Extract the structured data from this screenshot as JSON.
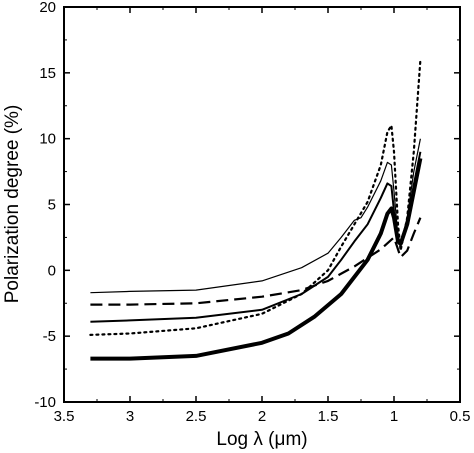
{
  "chart_data": {
    "type": "line",
    "xlabel": "Log λ (μm)",
    "ylabel": "Polarization degree (%)",
    "xlim": [
      3.5,
      0.5
    ],
    "ylim": [
      -10,
      20
    ],
    "x_axis_reversed": true,
    "x_ticks": [
      3.5,
      3,
      2.5,
      2,
      1.5,
      1,
      0.5
    ],
    "x_tick_labels": [
      "3.5",
      "3",
      "2.5",
      "2",
      "1.5",
      "1",
      "0.5"
    ],
    "y_ticks": [
      -10,
      -5,
      0,
      5,
      10,
      15,
      20
    ],
    "y_tick_labels": [
      "-10",
      "-5",
      "0",
      "5",
      "10",
      "15",
      "20"
    ],
    "grid": false,
    "legend": "none",
    "series": [
      {
        "style": "thin-solid",
        "points": [
          [
            3.3,
            -1.7
          ],
          [
            3.0,
            -1.6
          ],
          [
            2.5,
            -1.5
          ],
          [
            2.0,
            -0.8
          ],
          [
            1.7,
            0.2
          ],
          [
            1.5,
            1.3
          ],
          [
            1.4,
            2.5
          ],
          [
            1.3,
            3.8
          ],
          [
            1.25,
            4.0
          ],
          [
            1.2,
            4.8
          ],
          [
            1.1,
            6.8
          ],
          [
            1.05,
            8.2
          ],
          [
            1.02,
            8.0
          ],
          [
            1.0,
            6.0
          ],
          [
            0.97,
            2.5
          ],
          [
            0.95,
            2.0
          ],
          [
            0.9,
            4.0
          ],
          [
            0.85,
            7.5
          ],
          [
            0.8,
            10.0
          ]
        ]
      },
      {
        "style": "medium-solid",
        "points": [
          [
            3.3,
            -3.9
          ],
          [
            3.0,
            -3.8
          ],
          [
            2.5,
            -3.6
          ],
          [
            2.0,
            -3.0
          ],
          [
            1.7,
            -1.8
          ],
          [
            1.5,
            -0.5
          ],
          [
            1.4,
            0.8
          ],
          [
            1.3,
            2.2
          ],
          [
            1.2,
            3.5
          ],
          [
            1.1,
            5.5
          ],
          [
            1.05,
            6.6
          ],
          [
            1.02,
            6.4
          ],
          [
            1.0,
            4.5
          ],
          [
            0.97,
            2.5
          ],
          [
            0.95,
            2.0
          ],
          [
            0.9,
            3.5
          ],
          [
            0.85,
            6.5
          ],
          [
            0.8,
            9.0
          ]
        ]
      },
      {
        "style": "thick-solid",
        "points": [
          [
            3.3,
            -6.7
          ],
          [
            3.0,
            -6.7
          ],
          [
            2.5,
            -6.5
          ],
          [
            2.0,
            -5.5
          ],
          [
            1.8,
            -4.8
          ],
          [
            1.6,
            -3.5
          ],
          [
            1.4,
            -1.8
          ],
          [
            1.2,
            0.8
          ],
          [
            1.1,
            2.8
          ],
          [
            1.05,
            4.3
          ],
          [
            1.02,
            4.7
          ],
          [
            1.0,
            4.0
          ],
          [
            0.97,
            2.2
          ],
          [
            0.95,
            2.0
          ],
          [
            0.9,
            3.5
          ],
          [
            0.85,
            6.0
          ],
          [
            0.8,
            8.5
          ]
        ]
      },
      {
        "style": "dashed",
        "points": [
          [
            3.3,
            -2.6
          ],
          [
            3.0,
            -2.6
          ],
          [
            2.5,
            -2.5
          ],
          [
            2.0,
            -2.0
          ],
          [
            1.7,
            -1.5
          ],
          [
            1.5,
            -0.8
          ],
          [
            1.3,
            0.3
          ],
          [
            1.1,
            1.6
          ],
          [
            1.0,
            2.5
          ],
          [
            0.95,
            1.0
          ],
          [
            0.9,
            1.5
          ],
          [
            0.85,
            2.8
          ],
          [
            0.8,
            4.0
          ]
        ]
      },
      {
        "style": "dotted",
        "points": [
          [
            3.3,
            -4.9
          ],
          [
            3.0,
            -4.8
          ],
          [
            2.5,
            -4.4
          ],
          [
            2.0,
            -3.3
          ],
          [
            1.7,
            -1.8
          ],
          [
            1.5,
            0.0
          ],
          [
            1.4,
            1.8
          ],
          [
            1.3,
            3.5
          ],
          [
            1.2,
            5.2
          ],
          [
            1.1,
            8.0
          ],
          [
            1.05,
            10.5
          ],
          [
            1.02,
            11.0
          ],
          [
            1.0,
            9.0
          ],
          [
            0.97,
            3.5
          ],
          [
            0.95,
            1.5
          ],
          [
            0.9,
            4.0
          ],
          [
            0.85,
            9.0
          ],
          [
            0.8,
            16.0
          ]
        ]
      }
    ]
  }
}
